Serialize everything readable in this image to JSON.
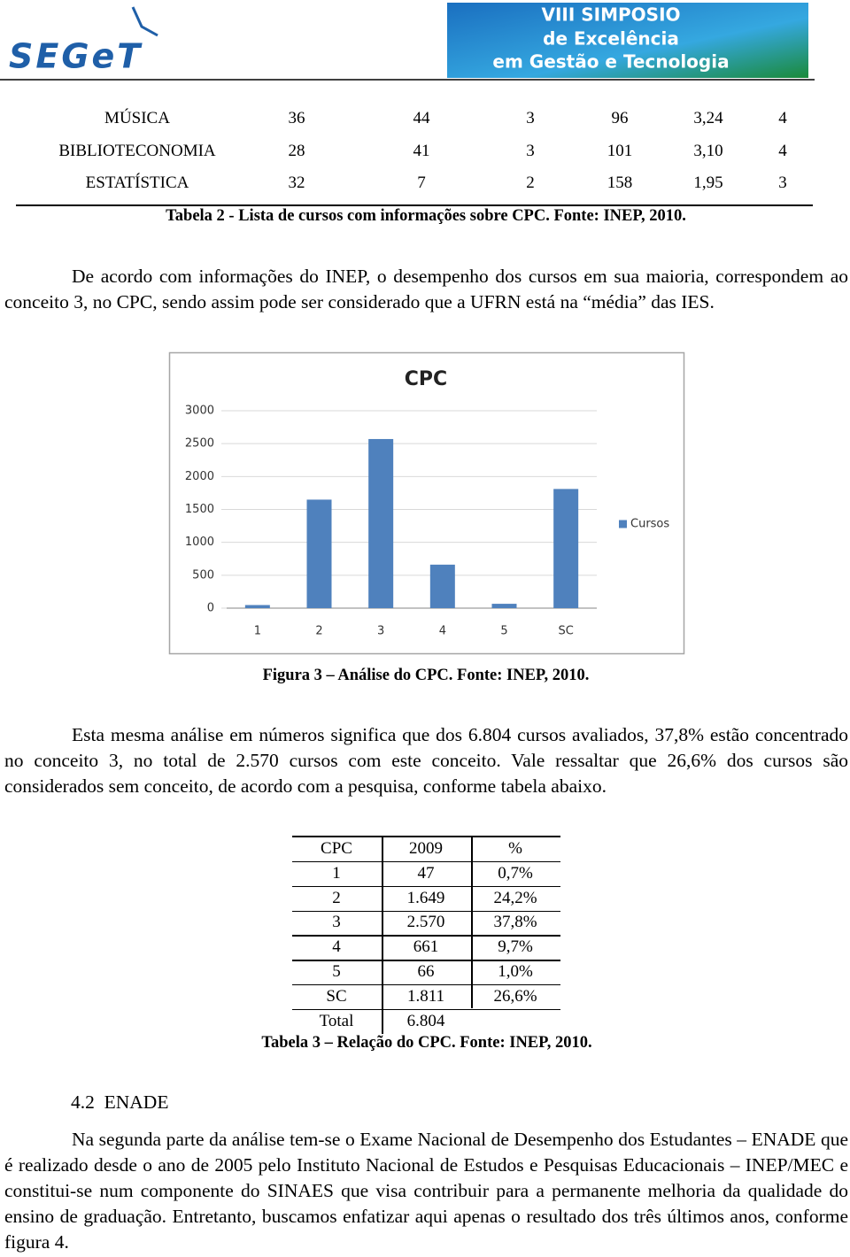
{
  "header": {
    "logo": "SEGeT",
    "banner": [
      "VIII SIMPOSIO",
      "de Excelência",
      "em Gestão e Tecnologia"
    ]
  },
  "table2": {
    "rows": [
      [
        "MÚSICA",
        "36",
        "44",
        "3",
        "96",
        "3,24",
        "4"
      ],
      [
        "BIBLIOTECONOMIA",
        "28",
        "41",
        "3",
        "101",
        "3,10",
        "4"
      ],
      [
        "ESTATÍSTICA",
        "32",
        "7",
        "2",
        "158",
        "1,95",
        "3"
      ]
    ],
    "caption": "Tabela 2 - Lista de cursos com informações sobre CPC. Fonte: INEP, 2010."
  },
  "paragraphs": [
    "De acordo com informações do INEP, o desempenho dos cursos em sua maioria, correspondem ao conceito 3, no CPC, sendo assim pode ser considerado que a UFRN está na “média” das IES.",
    "Esta mesma análise em números significa que dos 6.804 cursos avaliados, 37,8% estão concentrado no conceito 3, no total de 2.570 cursos com este conceito. Vale ressaltar que 26,6% dos cursos são considerados sem conceito, de acordo com a pesquisa, conforme tabela abaixo.",
    "Na segunda parte da análise tem-se o Exame Nacional de Desempenho dos Estudantes – ENADE que é realizado desde o ano de 2005 pelo Instituto Nacional de Estudos e Pesquisas Educacionais – INEP/MEC e constitui-se num componente do SINAES que visa contribuir para a permanente melhoria da qualidade do ensino de graduação. Entretanto, buscamos enfatizar aqui apenas o resultado dos três últimos anos, conforme figura 4."
  ],
  "chart_data": {
    "type": "bar",
    "title": "CPC",
    "categories": [
      "1",
      "2",
      "3",
      "4",
      "5",
      "SC"
    ],
    "series": [
      {
        "name": "Cursos",
        "color": "#4f81bd",
        "values": [
          47,
          1649,
          2570,
          661,
          66,
          1811
        ]
      }
    ],
    "ylim": [
      0,
      3000
    ],
    "yticks": [
      0,
      500,
      1000,
      1500,
      2000,
      2500,
      3000
    ],
    "grid": true,
    "legend": "right"
  },
  "figure_caption": "Figura 3 – Análise do CPC. Fonte: INEP, 2010.",
  "table3": {
    "header": [
      "CPC",
      "2009",
      "%"
    ],
    "rows": [
      [
        "1",
        "47",
        "0,7%"
      ],
      [
        "2",
        "1.649",
        "24,2%"
      ],
      [
        "3",
        "2.570",
        "37,8%"
      ],
      [
        "4",
        "661",
        "9,7%"
      ],
      [
        "5",
        "66",
        "1,0%"
      ],
      [
        "SC",
        "1.811",
        "26,6%"
      ],
      [
        "Total",
        "6.804"
      ]
    ],
    "caption": "Tabela 3 – Relação do CPC. Fonte: INEP, 2010."
  },
  "section_heading": "4.2  ENADE"
}
